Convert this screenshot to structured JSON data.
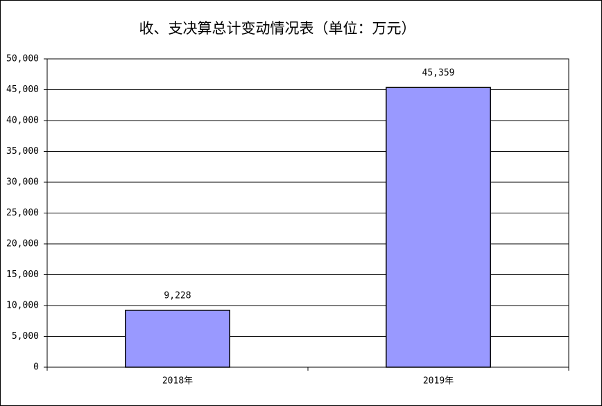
{
  "chart_data": {
    "type": "bar",
    "title": "收、支决算总计变动情况表（单位：万元）",
    "categories": [
      "2018年",
      "2019年"
    ],
    "values": [
      9228,
      45359
    ],
    "value_labels": [
      "9,228",
      "45,359"
    ],
    "color": "#9999ff",
    "ylim": [
      0,
      50000
    ],
    "yticks": [
      0,
      {
        "value": 5000,
        "label": "5,000"
      },
      {
        "value": 10000,
        "label": "10,000"
      },
      {
        "value": 15000,
        "label": "15,000"
      },
      {
        "value": 20000,
        "label": "20,000"
      },
      {
        "value": 25000,
        "label": "25,000"
      },
      {
        "value": 30000,
        "label": "30,000"
      },
      {
        "value": 35000,
        "label": "35,000"
      },
      {
        "value": 40000,
        "label": "40,000"
      },
      {
        "value": 45000,
        "label": "45,000"
      },
      {
        "value": 50000,
        "label": "50,000"
      }
    ],
    "grid": true
  }
}
